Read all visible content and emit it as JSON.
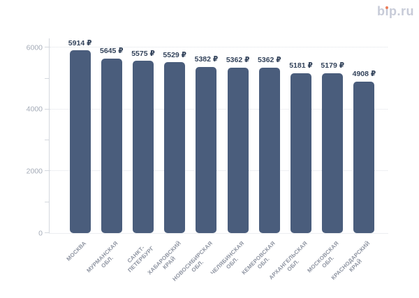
{
  "logo": {
    "text": "bip.ru",
    "color": "#c7cbd8",
    "dot_color": "#ec7c58"
  },
  "chart_data": {
    "type": "bar",
    "title": "",
    "xlabel": "",
    "ylabel": "",
    "categories": [
      "МОСКВА",
      "МУРМАНСКАЯ ОБЛ.",
      "САНКТ-ПЕТЕРБУРГ",
      "ХАБАРОВСКИЙ КРАЙ",
      "НОВОСИБИРСКАЯ ОБЛ.",
      "ЧЕЛЯБИНСКАЯ ОБЛ.",
      "КЕМЕРОВСКАЯ ОБЛ.",
      "АРХАНГЕЛЬСКАЯ ОБЛ.",
      "МОСКОВСКАЯ ОБЛ.",
      "КРАСНОДАРСКИЙ КРАЙ"
    ],
    "category_lines": [
      [
        "МОСКВА"
      ],
      [
        "МУРМАНСКАЯ",
        "ОБЛ."
      ],
      [
        "САНКТ-",
        "ПЕТЕРБУРГ"
      ],
      [
        "ХАБАРОВСКИЙ",
        "КРАЙ"
      ],
      [
        "НОВОСИБИРСКАЯ",
        "ОБЛ."
      ],
      [
        "ЧЕЛЯБИНСКАЯ",
        "ОБЛ."
      ],
      [
        "КЕМЕРОВСКАЯ",
        "ОБЛ."
      ],
      [
        "АРХАНГЕЛЬСКАЯ",
        "ОБЛ."
      ],
      [
        "МОСКОВСКАЯ",
        "ОБЛ."
      ],
      [
        "КРАСНОДАРСКИЙ",
        "КРАЙ"
      ]
    ],
    "values": [
      5914,
      5645,
      5575,
      5529,
      5382,
      5362,
      5362,
      5181,
      5179,
      4908
    ],
    "value_labels": [
      "5914 ₽",
      "5645 ₽",
      "5575 ₽",
      "5529 ₽",
      "5382 ₽",
      "5362 ₽",
      "5362 ₽",
      "5181 ₽",
      "5179 ₽",
      "4908 ₽"
    ],
    "currency": "₽",
    "ylim": [
      0,
      6300
    ],
    "y_ticks": [
      0,
      1000,
      2000,
      3000,
      4000,
      5000,
      6000
    ],
    "y_tick_labels": [
      "0",
      "",
      "2000",
      "",
      "4000",
      "",
      "6000"
    ],
    "gridline_values": [
      2000,
      4000,
      6000
    ],
    "grid": "horizontal dotted",
    "legend": "none",
    "bar_color": "#4a5d7c",
    "value_label_color": "#32425a",
    "axis_label_color": "#a4abb7",
    "category_label_color": "#8e94a1"
  }
}
